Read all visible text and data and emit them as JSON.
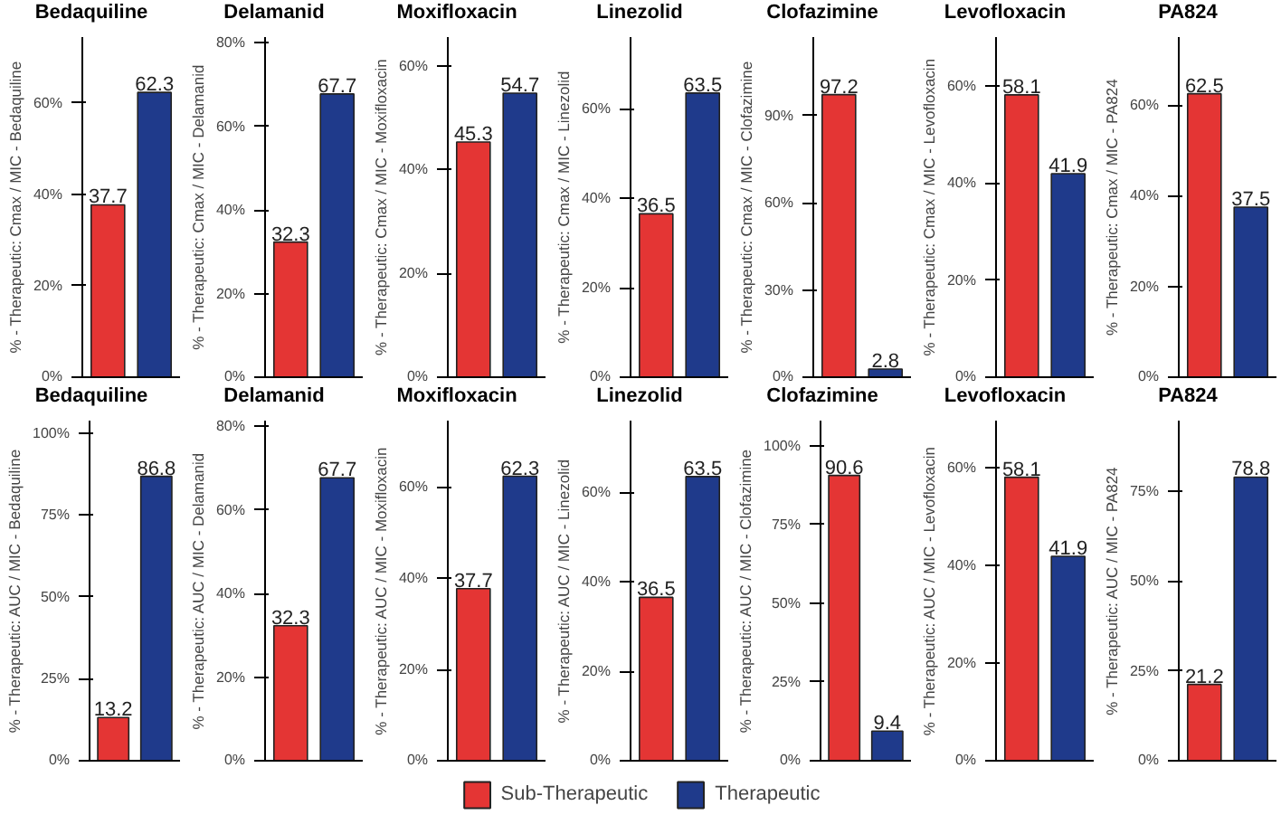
{
  "chart_data": [
    {
      "type": "bar",
      "title": "Bedaquiline",
      "ylabel": "% - Therapeutic: Cmax / MIC - Bedaquiline",
      "categories": [
        null,
        null
      ],
      "series": [
        {
          "name": "Sub-Therapeutic",
          "color": "#e43534",
          "values": [
            37.7,
            null
          ]
        },
        {
          "name": "Therapeutic",
          "color": "#1f3a8b",
          "values": [
            null,
            62.3
          ]
        }
      ],
      "ylim": [
        0,
        74.4
      ],
      "yticks": [
        {
          "value": 0,
          "label": "0%"
        },
        {
          "value": 20,
          "label": "20%"
        },
        {
          "value": 40,
          "label": "40%"
        },
        {
          "value": 60,
          "label": "60%"
        }
      ],
      "data_labels": true,
      "legend": "bottom"
    },
    {
      "type": "bar",
      "title": "Delamanid",
      "ylabel": "% - Therapeutic: Cmax / MIC - Delamanid",
      "categories": [
        null,
        null
      ],
      "series": [
        {
          "color": "#e43534",
          "values": [
            32.3,
            null
          ]
        },
        {
          "color": "#1f3a8b",
          "values": [
            null,
            67.7
          ]
        }
      ],
      "ylim": [
        0,
        81.3
      ],
      "yticks": [
        {
          "value": 0,
          "label": "0%"
        },
        {
          "value": 20,
          "label": "20%"
        },
        {
          "value": 40,
          "label": "40%"
        },
        {
          "value": 60,
          "label": "60%"
        },
        {
          "value": 80,
          "label": "80%"
        }
      ],
      "data_labels": true
    },
    {
      "type": "bar",
      "title": "Moxifloxacin",
      "ylabel": "% - Therapeutic: Cmax / MIC - Moxifloxacin",
      "categories": [
        null,
        null
      ],
      "series": [
        {
          "color": "#e43534",
          "values": [
            45.3,
            null
          ]
        },
        {
          "color": "#1f3a8b",
          "values": [
            null,
            54.7
          ]
        }
      ],
      "ylim": [
        0,
        65.5
      ],
      "yticks": [
        {
          "value": 0,
          "label": "0%"
        },
        {
          "value": 20,
          "label": "20%"
        },
        {
          "value": 40,
          "label": "40%"
        },
        {
          "value": 60,
          "label": "60%"
        }
      ],
      "data_labels": true
    },
    {
      "type": "bar",
      "title": "Linezolid",
      "ylabel": "% - Therapeutic: Cmax / MIC - Linezolid",
      "categories": [
        null,
        null
      ],
      "series": [
        {
          "color": "#e43534",
          "values": [
            36.5,
            null
          ]
        },
        {
          "color": "#1f3a8b",
          "values": [
            null,
            63.5
          ]
        }
      ],
      "ylim": [
        0,
        76
      ],
      "yticks": [
        {
          "value": 0,
          "label": "0%"
        },
        {
          "value": 20,
          "label": "20%"
        },
        {
          "value": 40,
          "label": "40%"
        },
        {
          "value": 60,
          "label": "60%"
        }
      ],
      "data_labels": true
    },
    {
      "type": "bar",
      "title": "Clofazimine",
      "ylabel": "% - Therapeutic: Cmax / MIC - Clofazimine",
      "categories": [
        null,
        null
      ],
      "series": [
        {
          "color": "#e43534",
          "values": [
            97.2,
            null
          ]
        },
        {
          "color": "#1f3a8b",
          "values": [
            null,
            2.8
          ]
        }
      ],
      "ylim": [
        0,
        117
      ],
      "yticks": [
        {
          "value": 0,
          "label": "0%"
        },
        {
          "value": 30,
          "label": "30%"
        },
        {
          "value": 60,
          "label": "60%"
        },
        {
          "value": 90,
          "label": "90%"
        }
      ],
      "data_labels": true
    },
    {
      "type": "bar",
      "title": "Levofloxacin",
      "ylabel": "% - Therapeutic: Cmax / MIC - Levofloxacin",
      "categories": [
        null,
        null
      ],
      "series": [
        {
          "color": "#e43534",
          "values": [
            58.1,
            null
          ]
        },
        {
          "color": "#1f3a8b",
          "values": [
            null,
            41.9
          ]
        }
      ],
      "ylim": [
        0,
        70
      ],
      "yticks": [
        {
          "value": 0,
          "label": "0%"
        },
        {
          "value": 20,
          "label": "20%"
        },
        {
          "value": 40,
          "label": "40%"
        },
        {
          "value": 60,
          "label": "60%"
        }
      ],
      "data_labels": true
    },
    {
      "type": "bar",
      "title": "PA824",
      "ylabel": "% - Therapeutic: Cmax / MIC - PA824",
      "categories": [
        null,
        null
      ],
      "series": [
        {
          "color": "#e43534",
          "values": [
            62.5,
            null
          ]
        },
        {
          "color": "#1f3a8b",
          "values": [
            null,
            37.5
          ]
        }
      ],
      "ylim": [
        0,
        75
      ],
      "yticks": [
        {
          "value": 0,
          "label": "0%"
        },
        {
          "value": 20,
          "label": "20%"
        },
        {
          "value": 40,
          "label": "40%"
        },
        {
          "value": 60,
          "label": "60%"
        }
      ],
      "data_labels": true
    },
    {
      "type": "bar",
      "title": "Bedaquiline",
      "ylabel": "% - Therapeutic: AUC / MIC - Bedaquiline",
      "categories": [
        null,
        null
      ],
      "series": [
        {
          "color": "#e43534",
          "values": [
            13.2,
            null
          ]
        },
        {
          "color": "#1f3a8b",
          "values": [
            null,
            86.8
          ]
        }
      ],
      "ylim": [
        0,
        103.8
      ],
      "yticks": [
        {
          "value": 0,
          "label": "0%"
        },
        {
          "value": 25,
          "label": "25%"
        },
        {
          "value": 50,
          "label": "50%"
        },
        {
          "value": 75,
          "label": "75%"
        },
        {
          "value": 100,
          "label": "100%"
        }
      ],
      "data_labels": true
    },
    {
      "type": "bar",
      "title": "Delamanid",
      "ylabel": "% - Therapeutic: AUC / MIC - Delamanid",
      "categories": [
        null,
        null
      ],
      "series": [
        {
          "color": "#e43534",
          "values": [
            32.3,
            null
          ]
        },
        {
          "color": "#1f3a8b",
          "values": [
            null,
            67.7
          ]
        }
      ],
      "ylim": [
        0,
        81.4
      ],
      "yticks": [
        {
          "value": 0,
          "label": "0%"
        },
        {
          "value": 20,
          "label": "20%"
        },
        {
          "value": 40,
          "label": "40%"
        },
        {
          "value": 60,
          "label": "60%"
        },
        {
          "value": 80,
          "label": "80%"
        }
      ],
      "data_labels": true
    },
    {
      "type": "bar",
      "title": "Moxifloxacin",
      "ylabel": "% - Therapeutic: AUC / MIC - Moxifloxacin",
      "categories": [
        null,
        null
      ],
      "series": [
        {
          "color": "#e43534",
          "values": [
            37.7,
            null
          ]
        },
        {
          "color": "#1f3a8b",
          "values": [
            null,
            62.3
          ]
        }
      ],
      "ylim": [
        0,
        74.5
      ],
      "yticks": [
        {
          "value": 0,
          "label": "0%"
        },
        {
          "value": 20,
          "label": "20%"
        },
        {
          "value": 40,
          "label": "40%"
        },
        {
          "value": 60,
          "label": "60%"
        }
      ],
      "data_labels": true
    },
    {
      "type": "bar",
      "title": "Linezolid",
      "ylabel": "% - Therapeutic: AUC / MIC - Linezolid",
      "categories": [
        null,
        null
      ],
      "series": [
        {
          "color": "#e43534",
          "values": [
            36.5,
            null
          ]
        },
        {
          "color": "#1f3a8b",
          "values": [
            null,
            63.5
          ]
        }
      ],
      "ylim": [
        0,
        76
      ],
      "yticks": [
        {
          "value": 0,
          "label": "0%"
        },
        {
          "value": 20,
          "label": "20%"
        },
        {
          "value": 40,
          "label": "40%"
        },
        {
          "value": 60,
          "label": "60%"
        }
      ],
      "data_labels": true
    },
    {
      "type": "bar",
      "title": "Clofazimine",
      "ylabel": "% - Therapeutic: AUC / MIC - Clofazimine",
      "categories": [
        null,
        null
      ],
      "series": [
        {
          "color": "#e43534",
          "values": [
            90.6,
            null
          ]
        },
        {
          "color": "#1f3a8b",
          "values": [
            null,
            9.4
          ]
        }
      ],
      "ylim": [
        0,
        108
      ],
      "yticks": [
        {
          "value": 0,
          "label": "0%"
        },
        {
          "value": 25,
          "label": "25%"
        },
        {
          "value": 50,
          "label": "50%"
        },
        {
          "value": 75,
          "label": "75%"
        },
        {
          "value": 100,
          "label": "100%"
        }
      ],
      "data_labels": true
    },
    {
      "type": "bar",
      "title": "Levofloxacin",
      "ylabel": "% - Therapeutic: AUC / MIC - Levofloxacin",
      "categories": [
        null,
        null
      ],
      "series": [
        {
          "color": "#e43534",
          "values": [
            58.1,
            null
          ]
        },
        {
          "color": "#1f3a8b",
          "values": [
            null,
            41.9
          ]
        }
      ],
      "ylim": [
        0,
        69.7
      ],
      "yticks": [
        {
          "value": 0,
          "label": "0%"
        },
        {
          "value": 20,
          "label": "20%"
        },
        {
          "value": 40,
          "label": "40%"
        },
        {
          "value": 60,
          "label": "60%"
        }
      ],
      "data_labels": true
    },
    {
      "type": "bar",
      "title": "PA824",
      "ylabel": "% - Therapeutic: AUC / MIC - PA824",
      "categories": [
        null,
        null
      ],
      "series": [
        {
          "color": "#e43534",
          "values": [
            21.2,
            null
          ]
        },
        {
          "color": "#1f3a8b",
          "values": [
            null,
            78.8
          ]
        }
      ],
      "ylim": [
        0,
        94.5
      ],
      "yticks": [
        {
          "value": 0,
          "label": "0%"
        },
        {
          "value": 25,
          "label": "25%"
        },
        {
          "value": 50,
          "label": "50%"
        },
        {
          "value": 75,
          "label": "75%"
        }
      ],
      "data_labels": true
    }
  ]
}
